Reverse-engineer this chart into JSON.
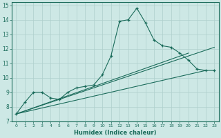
{
  "xlabel": "Humidex (Indice chaleur)",
  "bg_color": "#cde8e5",
  "grid_color": "#aecfcc",
  "line_color": "#1a6b5a",
  "xlim": [
    -0.5,
    23.5
  ],
  "ylim": [
    7,
    15.2
  ],
  "xticks": [
    0,
    1,
    2,
    3,
    4,
    5,
    6,
    7,
    8,
    9,
    10,
    11,
    12,
    13,
    14,
    15,
    16,
    17,
    18,
    19,
    20,
    21,
    22,
    23
  ],
  "yticks": [
    7,
    8,
    9,
    10,
    11,
    12,
    13,
    14,
    15
  ],
  "main_series": {
    "x": [
      0,
      1,
      2,
      3,
      4,
      5,
      6,
      7,
      8,
      9,
      10,
      11,
      12,
      13,
      14,
      15,
      16,
      17,
      18,
      19,
      20,
      21,
      22,
      23
    ],
    "y": [
      7.5,
      8.3,
      9.0,
      9.0,
      8.6,
      8.5,
      9.0,
      9.3,
      9.4,
      9.5,
      10.2,
      11.5,
      13.9,
      14.0,
      14.8,
      13.8,
      12.6,
      12.2,
      12.1,
      11.7,
      11.2,
      10.6,
      10.5,
      10.5
    ]
  },
  "straight_lines": [
    {
      "x": [
        0,
        22
      ],
      "y": [
        7.5,
        10.5
      ]
    },
    {
      "x": [
        0,
        20
      ],
      "y": [
        7.5,
        11.7
      ]
    },
    {
      "x": [
        0,
        23
      ],
      "y": [
        7.5,
        12.1
      ]
    }
  ]
}
